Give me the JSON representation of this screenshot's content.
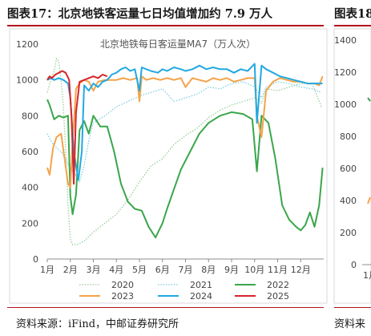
{
  "header": {
    "title": "图表17：北京地铁客运量七日均值增加约 7.9 万人",
    "title_next": "图表18"
  },
  "footer": {
    "source": "资料来源：iFind，中邮证券研究所",
    "source_next": "资料来"
  },
  "colors": {
    "title_rule": "#b3141d",
    "s2020": "#9acd9a",
    "s2021": "#7ecfe0",
    "s2022": "#3aa64a",
    "s2023": "#f4a34a",
    "s2024": "#21a9e1",
    "s2025": "#d7252a"
  },
  "chart_data": [
    {
      "type": "line",
      "title": "北京地铁每日客运量MA7（万人次）",
      "xlabel": "",
      "ylabel": "",
      "ylim": [
        0,
        1200
      ],
      "yticks": [
        0,
        200,
        400,
        600,
        800,
        1000,
        1200
      ],
      "xlim": [
        1,
        13
      ],
      "xtick_labels": [
        "1月",
        "2月",
        "3月",
        "4月",
        "5月",
        "6月",
        "7月",
        "8月",
        "9月",
        "10月",
        "11月",
        "12月"
      ],
      "grid": false,
      "legend_position": "bottom",
      "series": [
        {
          "name": "2020",
          "style": "dotted",
          "color": "#9acd9a",
          "x": [
            1.0,
            1.15,
            1.3,
            1.4,
            1.5,
            1.6,
            1.7,
            1.8,
            1.9,
            2.0,
            2.1,
            2.3,
            2.6,
            3.0,
            3.5,
            4.0,
            4.5,
            5.0,
            5.5,
            6.0,
            6.5,
            7.0,
            7.5,
            8.0,
            8.5,
            9.0,
            9.5,
            10.0,
            10.3,
            10.5,
            11.0,
            11.5,
            12.0,
            12.5,
            12.9
          ],
          "y": [
            930,
            1000,
            1050,
            1120,
            1100,
            1000,
            850,
            600,
            300,
            110,
            80,
            80,
            100,
            150,
            200,
            250,
            330,
            430,
            520,
            560,
            640,
            690,
            730,
            790,
            830,
            860,
            880,
            900,
            870,
            950,
            940,
            960,
            980,
            980,
            850
          ]
        },
        {
          "name": "2021",
          "style": "dotted",
          "color": "#7ecfe0",
          "x": [
            1.0,
            1.2,
            1.4,
            1.6,
            1.8,
            2.0,
            2.2,
            2.4,
            2.6,
            2.8,
            3.0,
            3.5,
            4.0,
            4.5,
            5.0,
            5.5,
            6.0,
            6.5,
            7.0,
            7.5,
            8.0,
            8.5,
            9.0,
            9.5,
            10.0,
            10.3,
            10.5,
            11.0,
            11.5,
            12.0,
            12.5,
            12.9
          ],
          "y": [
            700,
            650,
            620,
            600,
            560,
            500,
            480,
            430,
            520,
            660,
            760,
            800,
            850,
            880,
            910,
            930,
            950,
            880,
            900,
            920,
            960,
            950,
            980,
            990,
            960,
            900,
            960,
            990,
            980,
            960,
            950,
            930
          ]
        },
        {
          "name": "2022",
          "style": "solid",
          "color": "#3aa64a",
          "x": [
            1.0,
            1.1,
            1.3,
            1.5,
            1.7,
            1.9,
            2.0,
            2.1,
            2.25,
            2.4,
            2.6,
            2.8,
            3.0,
            3.3,
            3.6,
            3.9,
            4.2,
            4.5,
            4.8,
            5.1,
            5.4,
            5.7,
            6.0,
            6.2,
            6.5,
            6.8,
            7.2,
            7.6,
            8.0,
            8.5,
            9.0,
            9.5,
            9.9,
            10.1,
            10.3,
            10.6,
            10.9,
            11.2,
            11.5,
            11.8,
            12.0,
            12.2,
            12.4,
            12.6,
            12.8,
            12.95
          ],
          "y": [
            890,
            860,
            780,
            800,
            790,
            800,
            350,
            250,
            360,
            720,
            770,
            700,
            800,
            740,
            740,
            600,
            420,
            320,
            280,
            270,
            180,
            120,
            200,
            280,
            390,
            500,
            600,
            700,
            760,
            800,
            820,
            810,
            780,
            490,
            800,
            760,
            560,
            300,
            220,
            180,
            160,
            190,
            260,
            180,
            300,
            510
          ]
        },
        {
          "name": "2023",
          "style": "solid",
          "color": "#f4a34a",
          "x": [
            1.0,
            1.1,
            1.25,
            1.4,
            1.6,
            1.75,
            1.9,
            2.0,
            2.1,
            2.25,
            2.4,
            2.6,
            2.8,
            3.0,
            3.2,
            3.5,
            3.8,
            4.0,
            4.3,
            4.6,
            4.9,
            5.0,
            5.1,
            5.3,
            5.6,
            5.9,
            6.2,
            6.5,
            6.8,
            7.0,
            7.3,
            7.6,
            7.9,
            8.2,
            8.5,
            8.8,
            9.1,
            9.4,
            9.7,
            10.0,
            10.1,
            10.3,
            10.5,
            10.8,
            11.1,
            11.4,
            11.7,
            12.0,
            12.3,
            12.6,
            12.8,
            12.95
          ],
          "y": [
            510,
            470,
            620,
            680,
            700,
            560,
            420,
            400,
            650,
            950,
            980,
            1000,
            990,
            940,
            990,
            1000,
            1000,
            1000,
            1010,
            1000,
            1010,
            880,
            1020,
            1000,
            1010,
            1000,
            1010,
            1000,
            1010,
            960,
            1010,
            1000,
            990,
            1010,
            1000,
            1010,
            990,
            1000,
            1010,
            1010,
            800,
            680,
            940,
            990,
            1010,
            1000,
            990,
            990,
            980,
            980,
            970,
            1020
          ]
        },
        {
          "name": "2024",
          "style": "solid",
          "color": "#21a9e1",
          "x": [
            1.0,
            1.15,
            1.3,
            1.5,
            1.7,
            1.9,
            2.0,
            2.15,
            2.35,
            2.5,
            2.6,
            2.8,
            3.0,
            3.2,
            3.4,
            3.6,
            3.8,
            4.0,
            4.2,
            4.4,
            4.6,
            4.8,
            5.0,
            5.1,
            5.3,
            5.5,
            5.8,
            6.0,
            6.2,
            6.5,
            6.8,
            7.0,
            7.3,
            7.6,
            7.9,
            8.2,
            8.5,
            8.8,
            9.1,
            9.4,
            9.7,
            10.0,
            10.1,
            10.3,
            10.5,
            10.8,
            11.1,
            11.4,
            11.7,
            12.0,
            12.3,
            12.6,
            12.95
          ],
          "y": [
            1000,
            1010,
            1000,
            1010,
            1000,
            980,
            900,
            600,
            440,
            600,
            970,
            940,
            980,
            960,
            990,
            1000,
            1030,
            1040,
            1060,
            1070,
            1050,
            1060,
            940,
            1070,
            1060,
            1050,
            1040,
            1060,
            1050,
            1070,
            1060,
            1050,
            1060,
            1080,
            1060,
            1070,
            1060,
            1060,
            1040,
            1060,
            1050,
            1090,
            760,
            1080,
            1060,
            1040,
            1020,
            1010,
            1000,
            990,
            980,
            980,
            980
          ]
        },
        {
          "name": "2025",
          "style": "solid",
          "color": "#d7252a",
          "x": [
            1.0,
            1.1,
            1.2,
            1.35,
            1.5,
            1.65,
            1.8,
            1.95,
            2.05,
            2.15,
            2.25,
            2.4,
            2.6,
            2.8,
            3.0,
            3.2,
            3.4,
            3.6
          ],
          "y": [
            1000,
            1020,
            1010,
            1030,
            1040,
            1050,
            1040,
            1000,
            800,
            420,
            820,
            990,
            1000,
            1010,
            1020,
            1010,
            1030,
            1020
          ]
        }
      ]
    },
    {
      "type": "line",
      "title": "",
      "ylim": [
        0,
        1400
      ],
      "yticks": [
        0,
        200,
        400,
        600,
        800,
        1000,
        1200,
        1400
      ],
      "xtick_labels": [
        "1月"
      ],
      "series": [
        {
          "name": "",
          "color": "#3aa64a",
          "x": [
            1.0,
            1.05
          ],
          "y": [
            1040,
            1020
          ]
        },
        {
          "name": "",
          "color": "#f4a34a",
          "x": [
            1.0,
            1.05
          ],
          "y": [
            380,
            420
          ]
        }
      ]
    }
  ]
}
